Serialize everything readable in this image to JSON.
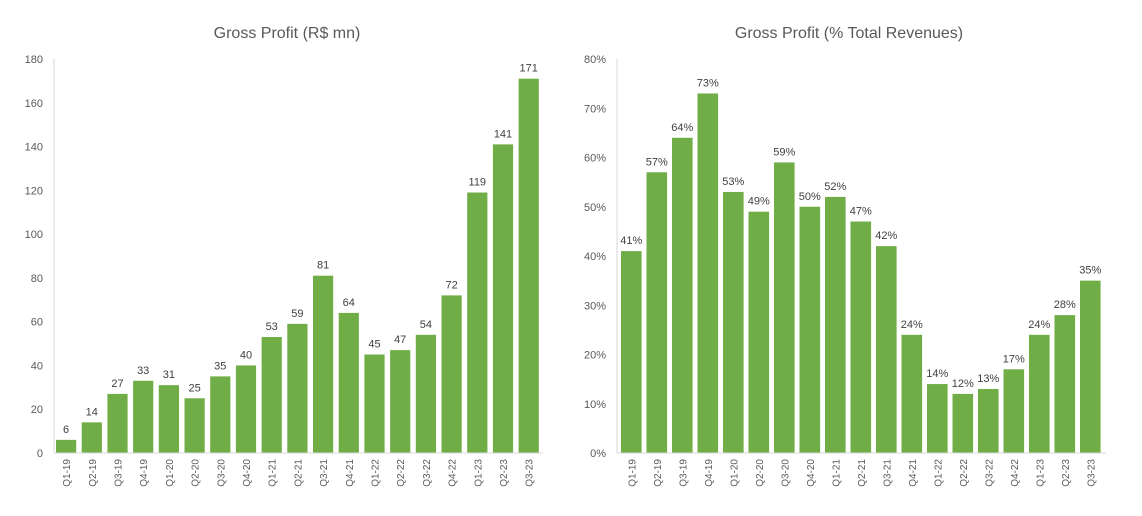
{
  "chart_data": [
    {
      "type": "bar",
      "title": "Gross Profit (R$ mn)",
      "xlabel": "",
      "ylabel": "",
      "ylim": [
        0,
        180
      ],
      "yticks": [
        0,
        20,
        40,
        60,
        80,
        100,
        120,
        140,
        160,
        180
      ],
      "ytick_labels": [
        "0",
        "20",
        "40",
        "60",
        "80",
        "100",
        "120",
        "140",
        "160",
        "180"
      ],
      "categories": [
        "Q1-19",
        "Q2-19",
        "Q3-19",
        "Q4-19",
        "Q1-20",
        "Q2-20",
        "Q3-20",
        "Q4-20",
        "Q1-21",
        "Q2-21",
        "Q3-21",
        "Q4-21",
        "Q1-22",
        "Q2-22",
        "Q3-22",
        "Q4-22",
        "Q1-23",
        "Q2-23",
        "Q3-23"
      ],
      "values": [
        6,
        14,
        27,
        33,
        31,
        25,
        35,
        40,
        53,
        59,
        81,
        64,
        45,
        47,
        54,
        72,
        119,
        141,
        171
      ],
      "data_labels": [
        "6",
        "14",
        "27",
        "33",
        "31",
        "25",
        "35",
        "40",
        "53",
        "59",
        "81",
        "64",
        "45",
        "47",
        "54",
        "72",
        "119",
        "141",
        "171"
      ],
      "bar_color": "#70AD47",
      "grid": false,
      "legend": "none"
    },
    {
      "type": "bar",
      "title": "Gross Profit (% Total Revenues)",
      "xlabel": "",
      "ylabel": "",
      "ylim": [
        0,
        80
      ],
      "yticks": [
        0,
        10,
        20,
        30,
        40,
        50,
        60,
        70,
        80
      ],
      "ytick_labels": [
        "0%",
        "10%",
        "20%",
        "30%",
        "40%",
        "50%",
        "60%",
        "70%",
        "80%"
      ],
      "categories": [
        "Q1-19",
        "Q2-19",
        "Q3-19",
        "Q4-19",
        "Q1-20",
        "Q2-20",
        "Q3-20",
        "Q4-20",
        "Q1-21",
        "Q2-21",
        "Q3-21",
        "Q4-21",
        "Q1-22",
        "Q2-22",
        "Q3-22",
        "Q4-22",
        "Q1-23",
        "Q2-23",
        "Q3-23"
      ],
      "values": [
        41,
        57,
        64,
        73,
        53,
        49,
        59,
        50,
        52,
        47,
        42,
        24,
        14,
        12,
        13,
        17,
        24,
        28,
        35
      ],
      "data_labels": [
        "41%",
        "57%",
        "64%",
        "73%",
        "53%",
        "49%",
        "59%",
        "50%",
        "52%",
        "47%",
        "42%",
        "24%",
        "14%",
        "12%",
        "13%",
        "17%",
        "24%",
        "28%",
        "35%"
      ],
      "bar_color": "#70AD47",
      "grid": false,
      "legend": "none"
    }
  ]
}
